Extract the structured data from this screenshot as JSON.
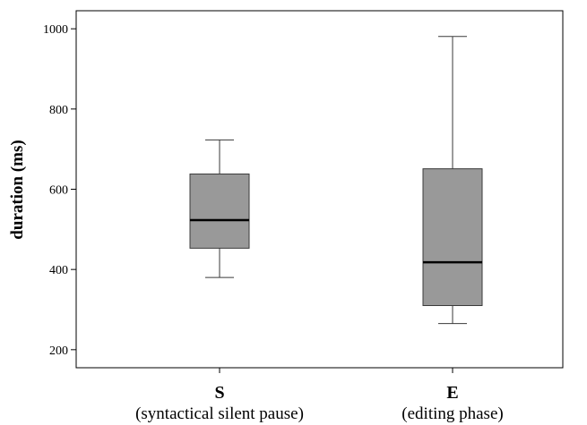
{
  "chart_data": {
    "type": "boxplot",
    "title": "",
    "xlabel": "",
    "ylabel": "duration (ms)",
    "ylim": [
      155,
      1045
    ],
    "yticks": [
      200,
      400,
      600,
      800,
      1000
    ],
    "grid": false,
    "categories": [
      {
        "label": "S",
        "sublabel": "(syntactical silent pause)"
      },
      {
        "label": "E",
        "sublabel": "(editing phase)"
      }
    ],
    "series": [
      {
        "boxes": [
          {
            "min": 380,
            "q1": 453,
            "median": 523,
            "q3": 638,
            "max": 723
          },
          {
            "min": 265,
            "q1": 310,
            "median": 418,
            "q3": 651,
            "max": 981
          }
        ]
      }
    ],
    "colors": {
      "box_fill": "#999999",
      "line": "#000000",
      "whisker": "#3a3a3a"
    }
  }
}
